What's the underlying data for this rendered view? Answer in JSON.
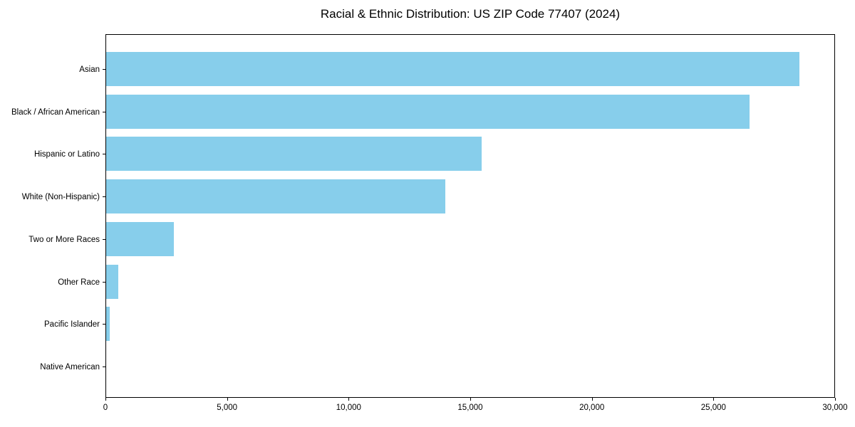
{
  "chart_data": {
    "type": "bar",
    "orientation": "horizontal",
    "title": "Racial & Ethnic Distribution: US ZIP Code 77407 (2024)",
    "categories": [
      "Asian",
      "Black / African American",
      "Hispanic or Latino",
      "White (Non-Hispanic)",
      "Two or More Races",
      "Other Race",
      "Pacific Islander",
      "Native American"
    ],
    "values": [
      28550,
      26500,
      15480,
      13970,
      2780,
      510,
      150,
      0
    ],
    "xlabel": "",
    "ylabel": "",
    "xlim": [
      0,
      30000
    ],
    "x_ticks": [
      0,
      5000,
      10000,
      15000,
      20000,
      25000,
      30000
    ],
    "x_tick_labels": [
      "0",
      "5,000",
      "10,000",
      "15,000",
      "20,000",
      "25,000",
      "30,000"
    ],
    "bar_color": "#87CEEB",
    "axis_color": "#000000",
    "grid": false,
    "legend": null
  }
}
